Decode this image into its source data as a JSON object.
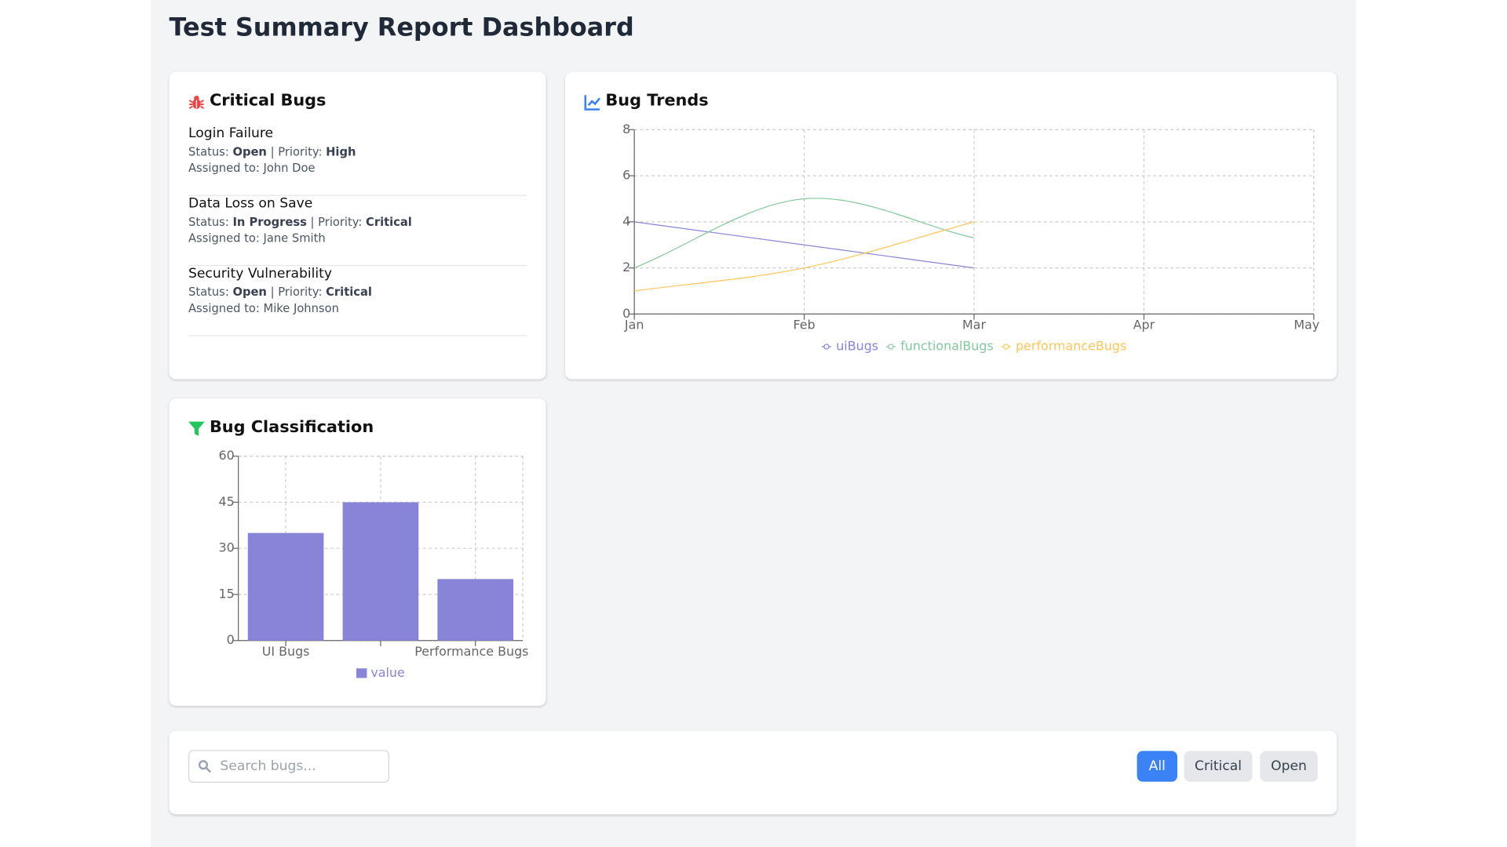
{
  "header": {
    "title": "Test Summary Report Dashboard"
  },
  "critical_bugs": {
    "title": "Critical Bugs",
    "status_label": "Status:",
    "priority_label": "Priority:",
    "separator": "|",
    "assigned_label": "Assigned to:",
    "items": [
      {
        "title": "Login Failure",
        "status": "Open",
        "priority": "High",
        "assignee": "John Doe"
      },
      {
        "title": "Data Loss on Save",
        "status": "In Progress",
        "priority": "Critical",
        "assignee": "Jane Smith"
      },
      {
        "title": "Security Vulnerability",
        "status": "Open",
        "priority": "Critical",
        "assignee": "Mike Johnson"
      }
    ]
  },
  "chart_data": [
    {
      "type": "line",
      "title": "Bug Trends",
      "categories": [
        "Jan",
        "Feb",
        "Mar",
        "Apr",
        "May"
      ],
      "ylim": [
        0,
        8
      ],
      "yticks": [
        0,
        2,
        4,
        6,
        8
      ],
      "grid": true,
      "series": [
        {
          "name": "uiBugs",
          "color": "#8884d8",
          "values": [
            4,
            3,
            2,
            null,
            null
          ]
        },
        {
          "name": "functionalBugs",
          "color": "#82ca9d",
          "values": [
            2,
            5,
            3.3,
            null,
            null
          ]
        },
        {
          "name": "performanceBugs",
          "color": "#ffc658",
          "values": [
            1,
            2,
            4,
            null,
            null
          ]
        }
      ]
    },
    {
      "type": "bar",
      "title": "Bug Classification",
      "categories": [
        "UI Bugs",
        null,
        "Performance Bugs"
      ],
      "ylim": [
        0,
        60
      ],
      "yticks": [
        0,
        15,
        30,
        45,
        60
      ],
      "grid": true,
      "series": [
        {
          "name": "value",
          "color": "#8884d8",
          "values": [
            35,
            45,
            20
          ]
        }
      ]
    }
  ],
  "filters": {
    "search_placeholder": "Search bugs...",
    "buttons": [
      "All",
      "Critical",
      "Open"
    ],
    "active_index": 0
  }
}
